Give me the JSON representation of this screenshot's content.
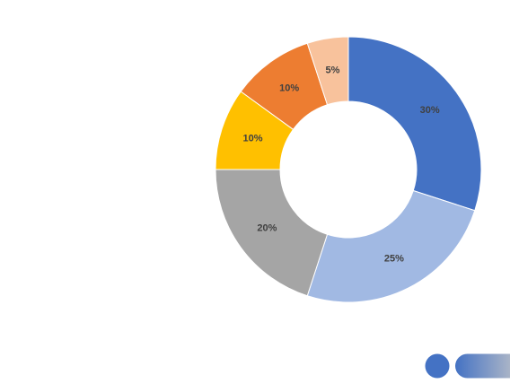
{
  "chart_data": {
    "type": "donut",
    "values": [
      30,
      25,
      20,
      10,
      10,
      5
    ],
    "value_labels": [
      "30%",
      "25%",
      "20%",
      "10%",
      "10%",
      "5%"
    ],
    "colors": [
      "#4472c4",
      "#a1b9e3",
      "#a5a5a5",
      "#ffc000",
      "#ed7d31",
      "#f8c29c"
    ]
  }
}
